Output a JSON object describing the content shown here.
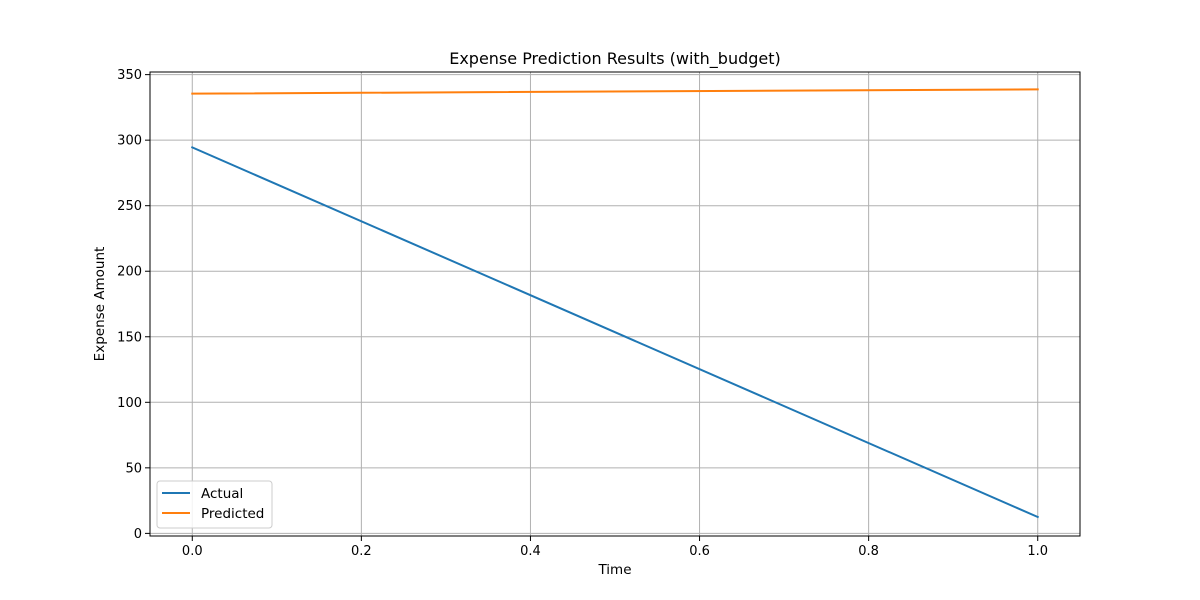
{
  "chart_data": {
    "type": "line",
    "title": "Expense Prediction Results (with_budget)",
    "xlabel": "Time",
    "ylabel": "Expense Amount",
    "xlim": [
      -0.05,
      1.05
    ],
    "ylim": [
      -2,
      352
    ],
    "xticks": [
      0.0,
      0.2,
      0.4,
      0.6,
      0.8,
      1.0
    ],
    "xtick_labels": [
      "0.0",
      "0.2",
      "0.4",
      "0.6",
      "0.8",
      "1.0"
    ],
    "yticks": [
      0,
      50,
      100,
      150,
      200,
      250,
      300,
      350
    ],
    "ytick_labels": [
      "0",
      "50",
      "100",
      "150",
      "200",
      "250",
      "300",
      "350"
    ],
    "grid": true,
    "legend_position": "lower-left",
    "series": [
      {
        "name": "Actual",
        "color": "#1f77b4",
        "x": [
          0.0,
          1.0
        ],
        "y": [
          294.5,
          12.5
        ]
      },
      {
        "name": "Predicted",
        "color": "#ff7f0e",
        "x": [
          0.0,
          1.0
        ],
        "y": [
          335.5,
          338.7
        ]
      }
    ]
  }
}
